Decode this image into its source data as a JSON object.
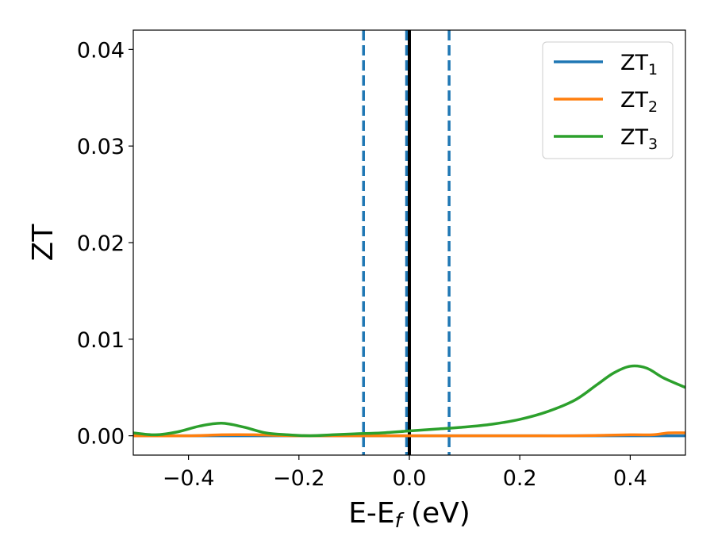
{
  "chart_data": {
    "type": "line",
    "xlabel": {
      "main": "E-E",
      "sub": "f",
      "suffix": " (eV)"
    },
    "ylabel": "ZT",
    "xlim": [
      -0.5,
      0.5
    ],
    "ylim": [
      -0.002,
      0.042
    ],
    "xticks": [
      -0.4,
      -0.2,
      0.0,
      0.2,
      0.4
    ],
    "xtick_labels": [
      "−0.4",
      "−0.2",
      "0.0",
      "0.2",
      "0.4"
    ],
    "yticks": [
      0.0,
      0.01,
      0.02,
      0.03,
      0.04
    ],
    "ytick_labels": [
      "0.00",
      "0.01",
      "0.02",
      "0.03",
      "0.04"
    ],
    "grid": false,
    "legend_position": "top-right",
    "series": [
      {
        "name": "ZT",
        "name_sub": "1",
        "color": "#1f77b4",
        "x": [
          -0.5,
          -0.3,
          -0.1,
          0.0,
          0.1,
          0.3,
          0.5
        ],
        "y": [
          0.0,
          0.0,
          0.0,
          0.0,
          0.0,
          0.0,
          0.0
        ]
      },
      {
        "name": "ZT",
        "name_sub": "2",
        "color": "#ff7f0e",
        "x": [
          -0.5,
          -0.4,
          -0.34,
          -0.28,
          -0.2,
          -0.1,
          0.0,
          0.1,
          0.2,
          0.3,
          0.4,
          0.44,
          0.47,
          0.5
        ],
        "y": [
          0.0,
          0.0,
          0.0001,
          0.0001,
          0.0,
          0.0,
          0.0,
          0.0,
          0.0,
          0.0,
          0.0001,
          0.0001,
          0.0003,
          0.0003
        ]
      },
      {
        "name": "ZT",
        "name_sub": "3",
        "color": "#2ca02c",
        "x": [
          -0.5,
          -0.46,
          -0.42,
          -0.38,
          -0.34,
          -0.3,
          -0.26,
          -0.22,
          -0.18,
          -0.14,
          -0.1,
          -0.05,
          0.0,
          0.05,
          0.1,
          0.15,
          0.2,
          0.25,
          0.3,
          0.34,
          0.37,
          0.4,
          0.43,
          0.46,
          0.5
        ],
        "y": [
          0.0003,
          0.0001,
          0.0004,
          0.001,
          0.0013,
          0.0009,
          0.0003,
          0.0001,
          0.0,
          0.0001,
          0.0002,
          0.0003,
          0.0005,
          0.0007,
          0.0009,
          0.0012,
          0.0017,
          0.0025,
          0.0037,
          0.0053,
          0.0065,
          0.0072,
          0.007,
          0.006,
          0.005
        ]
      }
    ],
    "vlines": [
      {
        "x": -0.083,
        "color": "#1f77b4",
        "style": "dashed"
      },
      {
        "x": -0.005,
        "color": "#1f77b4",
        "style": "dashed"
      },
      {
        "x": 0.0,
        "color": "#000000",
        "style": "solid"
      },
      {
        "x": 0.072,
        "color": "#1f77b4",
        "style": "dashed"
      }
    ]
  }
}
